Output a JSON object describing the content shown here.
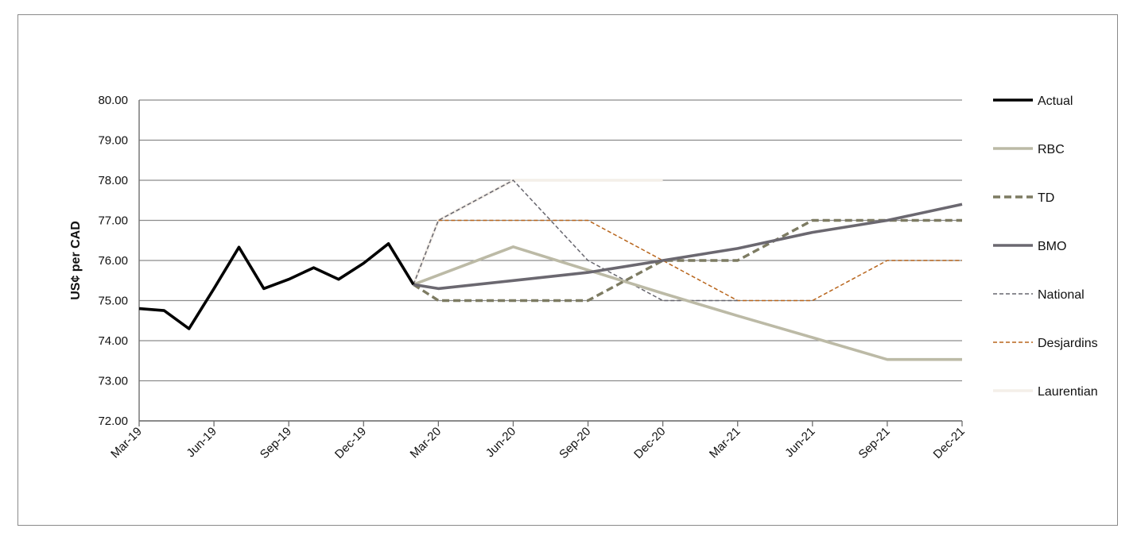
{
  "chart_data": {
    "type": "line",
    "title": "",
    "xlabel": "",
    "ylabel": "US¢ per CAD",
    "ylim": [
      72.0,
      80.0
    ],
    "y_ticks": [
      "72.00",
      "73.00",
      "74.00",
      "75.00",
      "76.00",
      "77.00",
      "78.00",
      "79.00",
      "80.00"
    ],
    "x_ticks": [
      "Mar-19",
      "Jun-19",
      "Sep-19",
      "Dec-19",
      "Mar-20",
      "Jun-20",
      "Sep-20",
      "Dec-20",
      "Mar-21",
      "Jun-21",
      "Sep-21",
      "Dec-21"
    ],
    "grid": "horizontal",
    "legend_position": "right",
    "series": [
      {
        "name": "Actual",
        "color": "#000000",
        "style": "solid-thick",
        "x": [
          "Mar-19",
          "Apr-19",
          "May-19",
          "Jun-19",
          "Jul-19",
          "Aug-19",
          "Sep-19",
          "Oct-19",
          "Nov-19",
          "Dec-19",
          "Jan-20",
          "Feb-20"
        ],
        "values": [
          74.8,
          74.75,
          74.3,
          75.3,
          76.33,
          75.3,
          75.53,
          75.82,
          75.53,
          75.93,
          76.42,
          75.4
        ]
      },
      {
        "name": "RBC",
        "color": "#bcbaa6",
        "style": "solid-thick",
        "x": [
          "Feb-20",
          "Jun-20",
          "Sep-20",
          "Dec-20",
          "Mar-21",
          "Jun-21",
          "Sep-21",
          "Dec-21"
        ],
        "values": [
          75.4,
          76.34,
          75.76,
          75.18,
          74.62,
          74.08,
          73.53,
          73.53
        ]
      },
      {
        "name": "TD",
        "color": "#7d7b62",
        "style": "dashed-thick",
        "x": [
          "Feb-20",
          "Mar-20",
          "Jun-20",
          "Sep-20",
          "Dec-20",
          "Mar-21",
          "Jun-21",
          "Sep-21",
          "Dec-21"
        ],
        "values": [
          75.4,
          75.0,
          75.0,
          75.0,
          76.0,
          76.0,
          77.0,
          77.0,
          77.0
        ]
      },
      {
        "name": "BMO",
        "color": "#6b6870",
        "style": "solid-thick",
        "x": [
          "Feb-20",
          "Mar-20",
          "Jun-20",
          "Sep-20",
          "Dec-20",
          "Mar-21",
          "Jun-21",
          "Sep-21",
          "Dec-21"
        ],
        "values": [
          75.4,
          75.3,
          75.5,
          75.7,
          76.0,
          76.3,
          76.7,
          77.0,
          77.4
        ]
      },
      {
        "name": "National",
        "color": "#67666e",
        "style": "dashed-thin",
        "x": [
          "Feb-20",
          "Mar-20",
          "Jun-20",
          "Sep-20",
          "Dec-20",
          "Mar-21"
        ],
        "values": [
          75.4,
          77.0,
          78.0,
          76.0,
          75.0,
          75.0
        ]
      },
      {
        "name": "Desjardins",
        "color": "#b8651c",
        "style": "dashed-thin",
        "x": [
          "Mar-20",
          "Jun-20",
          "Sep-20",
          "Dec-20",
          "Mar-21",
          "Jun-21",
          "Sep-21",
          "Dec-21"
        ],
        "values": [
          77.0,
          77.0,
          77.0,
          76.0,
          75.0,
          75.0,
          76.0,
          76.0
        ]
      },
      {
        "name": "Laurentian",
        "color": "#f4efe9",
        "style": "solid-thick",
        "x": [
          "Feb-20",
          "Mar-20",
          "Jun-20",
          "Sep-20",
          "Dec-20"
        ],
        "values": [
          75.4,
          77.0,
          78.0,
          78.0,
          78.0
        ]
      }
    ]
  }
}
